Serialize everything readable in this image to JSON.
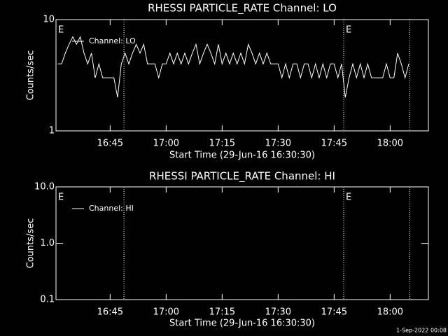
{
  "chart_data": [
    {
      "type": "line",
      "title": "RHESSI PARTICLE_RATE Channel: LO",
      "xlabel": "Start Time (29-Jun-16 16:30:30)",
      "ylabel": "Counts/sec",
      "x": [
        "16:31",
        "16:32",
        "16:33",
        "16:34",
        "16:35",
        "16:36",
        "16:37",
        "16:38",
        "16:39",
        "16:40",
        "16:41",
        "16:42",
        "16:43",
        "16:44",
        "16:45",
        "16:46",
        "16:47",
        "16:48",
        "16:49",
        "16:50",
        "16:51",
        "16:52",
        "16:53",
        "16:54",
        "16:55",
        "16:56",
        "16:57",
        "16:58",
        "16:59",
        "17:00",
        "17:01",
        "17:02",
        "17:03",
        "17:04",
        "17:05",
        "17:06",
        "17:07",
        "17:08",
        "17:09",
        "17:10",
        "17:11",
        "17:12",
        "17:13",
        "17:14",
        "17:15",
        "17:16",
        "17:17",
        "17:18",
        "17:19",
        "17:20",
        "17:21",
        "17:22",
        "17:23",
        "17:24",
        "17:25",
        "17:26",
        "17:27",
        "17:28",
        "17:29",
        "17:30",
        "17:31",
        "17:32",
        "17:33",
        "17:34",
        "17:35",
        "17:36",
        "17:37",
        "17:38",
        "17:39",
        "17:40",
        "17:41",
        "17:42",
        "17:43",
        "17:44",
        "17:45",
        "17:46",
        "17:47",
        "17:48",
        "17:49",
        "17:50",
        "17:51",
        "17:52",
        "17:53",
        "17:54",
        "17:55",
        "17:56",
        "17:57",
        "17:58",
        "17:59",
        "18:00",
        "18:01",
        "18:02",
        "18:03",
        "18:04",
        "18:05"
      ],
      "series": [
        {
          "name": "Channel: LO",
          "color": "#ffffff",
          "values": [
            4,
            4,
            5,
            6,
            7,
            6,
            7,
            5,
            4,
            5,
            3,
            4,
            3,
            3,
            3,
            3,
            2,
            4,
            5,
            4,
            5,
            6,
            5,
            6,
            4,
            4,
            4,
            3,
            4,
            4,
            5,
            4,
            5,
            4,
            5,
            4,
            5,
            6,
            4,
            5,
            6,
            5,
            4,
            6,
            4,
            5,
            4,
            5,
            4,
            5,
            4,
            6,
            5,
            4,
            5,
            4,
            5,
            4,
            4,
            4,
            3,
            4,
            3,
            4,
            4,
            3,
            4,
            4,
            3,
            4,
            3,
            4,
            3,
            4,
            4,
            3,
            4,
            2,
            3,
            4,
            3,
            4,
            3,
            4,
            3,
            3,
            3,
            3,
            4,
            3,
            3,
            5,
            4,
            3,
            4
          ]
        }
      ],
      "xlim": [
        "16:30:30",
        "18:10:15"
      ],
      "xticks": [
        "16:45",
        "17:00",
        "17:15",
        "17:30",
        "17:45",
        "18:00"
      ],
      "ylim": [
        1,
        10
      ],
      "yticks": [
        1,
        10
      ],
      "log_y": true,
      "legend": "upper left",
      "vlines": [
        "16:48:42",
        "17:47:34",
        "18:05:12"
      ],
      "events": [
        {
          "label": "E",
          "x": "16:30:30"
        },
        {
          "label": "E",
          "x": "17:47:34"
        }
      ]
    },
    {
      "type": "line",
      "title": "RHESSI PARTICLE_RATE Channel: HI",
      "xlabel": "Start Time (29-Jun-16 16:30:30)",
      "ylabel": "Counts/sec",
      "x": [],
      "series": [
        {
          "name": "Channel: HI",
          "color": "#ffffff",
          "values": []
        }
      ],
      "xlim": [
        "16:30:30",
        "18:10:15"
      ],
      "xticks": [
        "16:45",
        "17:00",
        "17:15",
        "17:30",
        "17:45",
        "18:00"
      ],
      "ylim": [
        0.1,
        10
      ],
      "yticks": [
        0.1,
        {
          "value": 1,
          "label": "1.0"
        },
        {
          "value": 10,
          "label": "10.0"
        }
      ],
      "log_y": true,
      "legend": "upper left",
      "vlines": [
        "16:48:42",
        "17:47:34",
        "18:05:12"
      ],
      "events": [
        {
          "label": "E",
          "x": "16:30:30"
        },
        {
          "label": "E",
          "x": "17:47:34"
        }
      ]
    }
  ],
  "footer": "1-Sep-2022 00:08"
}
